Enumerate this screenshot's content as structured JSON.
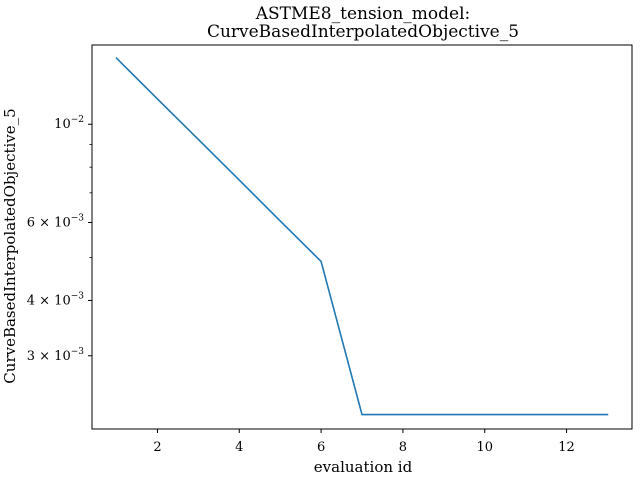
{
  "chart_data": {
    "type": "line",
    "title_line1": "ASTME8_tension_model:",
    "title_line2": "CurveBasedInterpolatedObjective_5",
    "xlabel": "evaluation id",
    "ylabel": "CurveBasedInterpolatedObjective_5",
    "yscale": "log",
    "xlim": [
      0.4,
      13.6
    ],
    "ylim": [
      0.00205,
      0.0151
    ],
    "x_ticks": [
      2,
      4,
      6,
      8,
      10,
      12
    ],
    "y_ticks": [
      {
        "value": 0.01,
        "mantissa": "",
        "exponent": "−2"
      },
      {
        "value": 0.006,
        "mantissa": "6",
        "exponent": "−3"
      },
      {
        "value": 0.004,
        "mantissa": "4",
        "exponent": "−3"
      },
      {
        "value": 0.003,
        "mantissa": "3",
        "exponent": "−3"
      }
    ],
    "y_minor_ticks": [
      0.005,
      0.007,
      0.008,
      0.009
    ],
    "grid": false,
    "legend": "none",
    "series": [
      {
        "color": "#1f77b4",
        "x": [
          1,
          2,
          3,
          4,
          5,
          6,
          7,
          8,
          9,
          10,
          11,
          12,
          13
        ],
        "y": [
          0.0141,
          0.01141,
          0.00924,
          0.00748,
          0.00605,
          0.0049,
          0.00221,
          0.00221,
          0.00221,
          0.00221,
          0.00221,
          0.00221,
          0.00221
        ]
      }
    ]
  }
}
